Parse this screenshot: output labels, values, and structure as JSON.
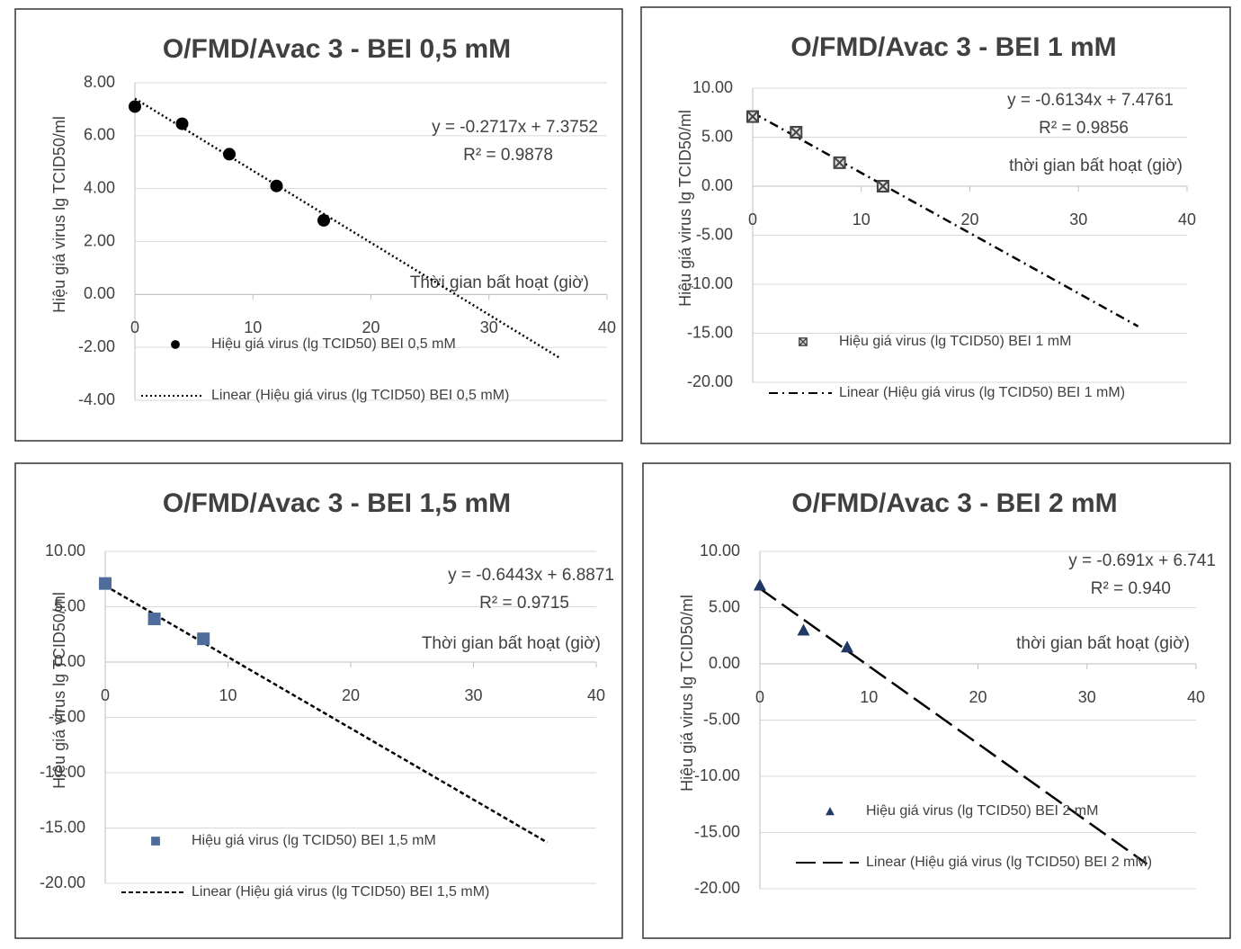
{
  "chart_data": [
    {
      "type": "scatter",
      "title": "O/FMD/Avac 3 - BEI 0,5 mM",
      "y_label": "Hiệu giá virus lg TCID50/ml",
      "x_label": "Thời gian bất hoạt (giờ)",
      "equation": "y = -0.2717x + 7.3752",
      "r_squared": "R² = 0.9878",
      "x": [
        0,
        4,
        8,
        12,
        16
      ],
      "series": [
        {
          "name": "Hiệu giá virus (lg TCID50) BEI 0,5 mM",
          "color": "#000000",
          "marker": "circle",
          "values": [
            7.1,
            6.45,
            5.3,
            4.1,
            2.8
          ]
        }
      ],
      "trendline": {
        "name": "Linear (Hiệu giá virus (lg TCID50) BEI 0,5 mM)",
        "style": "dotted",
        "color": "#000000",
        "x": [
          0,
          36
        ],
        "values": [
          7.4,
          -2.4
        ]
      },
      "xlim": [
        0,
        40
      ],
      "xticks": [
        0,
        10,
        20,
        30,
        40
      ],
      "ylim": [
        -4,
        8
      ],
      "yticks": [
        {
          "value": -4,
          "label": "-4.00"
        },
        {
          "value": -2,
          "label": "-2.00"
        },
        {
          "value": 0,
          "label": "0.00"
        },
        {
          "value": 2,
          "label": "2.00"
        },
        {
          "value": 4,
          "label": "4.00"
        },
        {
          "value": 6,
          "label": "6.00"
        },
        {
          "value": 8,
          "label": "8.00"
        }
      ],
      "grid": true
    },
    {
      "type": "scatter",
      "title": "O/FMD/Avac 3 - BEI 1 mM",
      "y_label": "Hiệu giá virus lg TCID50/ml",
      "x_label": "thời gian bất hoạt (giờ)",
      "equation": "y = -0.6134x + 7.4761",
      "r_squared": "R² = 0.9856",
      "x": [
        0,
        4,
        8,
        12
      ],
      "series": [
        {
          "name": "Hiệu giá virus (lg TCID50) BEI 1 mM",
          "color": "#444444",
          "marker": "x-square",
          "values": [
            7.1,
            5.5,
            2.4,
            0
          ]
        }
      ],
      "trendline": {
        "name": "Linear (Hiệu giá virus (lg TCID50) BEI 1 mM)",
        "style": "dashdot",
        "color": "#000000",
        "x": [
          0,
          35.5
        ],
        "values": [
          7.5,
          -14.3
        ]
      },
      "xlim": [
        0,
        40
      ],
      "xticks": [
        0,
        10,
        20,
        30,
        40
      ],
      "ylim": [
        -20,
        10
      ],
      "yticks": [
        {
          "value": -20,
          "label": "-20.00"
        },
        {
          "value": -15,
          "label": "-15.00"
        },
        {
          "value": -10,
          "label": "-10.00"
        },
        {
          "value": -5,
          "label": "-5.00"
        },
        {
          "value": 0,
          "label": "0.00"
        },
        {
          "value": 5,
          "label": "5.00"
        },
        {
          "value": 10,
          "label": "10.00"
        }
      ],
      "grid": true
    },
    {
      "type": "scatter",
      "title": "O/FMD/Avac 3 - BEI 1,5 mM",
      "y_label": "Hiệu giá virus lg TCID50/ml",
      "x_label": "Thời gian bất hoạt (giờ)",
      "equation": "y = -0.6443x + 6.8871",
      "r_squared": "R² = 0.9715",
      "x": [
        0,
        4,
        8
      ],
      "series": [
        {
          "name": "Hiệu giá virus (lg TCID50) BEI 1,5 mM",
          "color": "#4f6d9a",
          "marker": "square",
          "values": [
            7.1,
            3.9,
            2.1
          ]
        }
      ],
      "trendline": {
        "name": "Linear (Hiệu giá virus (lg TCID50) BEI 1,5 mM)",
        "style": "dashed",
        "color": "#000000",
        "x": [
          0,
          36
        ],
        "values": [
          6.9,
          -16.3
        ]
      },
      "xlim": [
        0,
        40
      ],
      "xticks": [
        0,
        10,
        20,
        30,
        40
      ],
      "ylim": [
        -20,
        10
      ],
      "yticks": [
        {
          "value": -20,
          "label": "-20.00"
        },
        {
          "value": -15,
          "label": "-15.00"
        },
        {
          "value": -10,
          "label": "-10.00"
        },
        {
          "value": -5,
          "label": "-5.00"
        },
        {
          "value": 0,
          "label": "0.00"
        },
        {
          "value": 5,
          "label": "5.00"
        },
        {
          "value": 10,
          "label": "10.00"
        }
      ],
      "grid": true
    },
    {
      "type": "scatter",
      "title": "O/FMD/Avac 3 - BEI 2 mM",
      "y_label": "Hiệu giá virus lg TCID50/ml",
      "x_label": "thời gian bất hoạt (giờ)",
      "equation": "y = -0.691x + 6.741",
      "r_squared": "R² = 0.940",
      "x": [
        0,
        4,
        8
      ],
      "series": [
        {
          "name": "Hiệu giá virus (lg TCID50) BEI 2 mM",
          "color": "#1f3864",
          "marker": "triangle",
          "values": [
            7,
            3,
            1.5
          ]
        }
      ],
      "trendline": {
        "name": "Linear (Hiệu giá virus (lg TCID50) BEI 2 mM)",
        "style": "longdash",
        "color": "#000000",
        "x": [
          0,
          35.5
        ],
        "values": [
          6.7,
          -17.8
        ]
      },
      "xlim": [
        0,
        40
      ],
      "xticks": [
        0,
        10,
        20,
        30,
        40
      ],
      "ylim": [
        -20,
        10
      ],
      "yticks": [
        {
          "value": -20,
          "label": "-20.00"
        },
        {
          "value": -15,
          "label": "-15.00"
        },
        {
          "value": -10,
          "label": "-10.00"
        },
        {
          "value": -5,
          "label": "-5.00"
        },
        {
          "value": 0,
          "label": "0.00"
        },
        {
          "value": 5,
          "label": "5.00"
        },
        {
          "value": 10,
          "label": "10.00"
        }
      ],
      "grid": true
    }
  ]
}
